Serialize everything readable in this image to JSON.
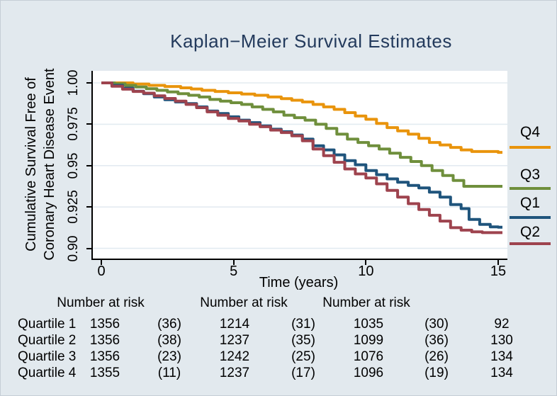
{
  "title": "Kaplan−Meier Survival Estimates",
  "axes": {
    "y_label_line1": "Cumulative Survival Free of",
    "y_label_line2": "Coronary Heart Disease Event",
    "x_label": "Time (years)",
    "y_ticks": [
      "1.00",
      "0.975",
      "0.95",
      "0.925",
      "0.90"
    ],
    "x_ticks": [
      "0",
      "5",
      "10",
      "15"
    ]
  },
  "legend": [
    {
      "label": "Q4",
      "color": "#E9940C"
    },
    {
      "label": "Q3",
      "color": "#6F8F3C"
    },
    {
      "label": "Q1",
      "color": "#1F547C"
    },
    {
      "label": "Q2",
      "color": "#9E434E"
    }
  ],
  "colors": {
    "background": "#E2E9EE",
    "plot_background": "#FFFFFF",
    "gridline": "#E3EBF1",
    "title": "#233A5C",
    "axis": "#000000"
  },
  "chart_data": {
    "type": "line",
    "subtype": "kaplan-meier-step",
    "title": "Kaplan−Meier Survival Estimates",
    "xlabel": "Time (years)",
    "ylabel": "Cumulative Survival Free of Coronary Heart Disease Event",
    "xlim": [
      0,
      15
    ],
    "ylim": [
      0.9,
      1.0
    ],
    "x_tick_values": [
      0,
      5,
      10,
      15
    ],
    "y_tick_values": [
      1.0,
      0.975,
      0.95,
      0.925,
      0.9
    ],
    "grid": "horizontal",
    "legend_position": "right",
    "series": [
      {
        "name": "Q4",
        "color": "#E9940C",
        "points": [
          [
            0,
            1.0
          ],
          [
            0.9,
            1.0
          ],
          [
            1.2,
            0.9993
          ],
          [
            1.8,
            0.9985
          ],
          [
            2.4,
            0.9978
          ],
          [
            3.0,
            0.997
          ],
          [
            3.4,
            0.9963
          ],
          [
            3.8,
            0.9955
          ],
          [
            4.3,
            0.9948
          ],
          [
            4.8,
            0.994
          ],
          [
            5.3,
            0.9933
          ],
          [
            5.8,
            0.9925
          ],
          [
            6.3,
            0.9915
          ],
          [
            6.8,
            0.9905
          ],
          [
            7.2,
            0.9895
          ],
          [
            7.6,
            0.9885
          ],
          [
            8.0,
            0.987
          ],
          [
            8.4,
            0.9855
          ],
          [
            8.8,
            0.984
          ],
          [
            9.2,
            0.982
          ],
          [
            9.6,
            0.98
          ],
          [
            10.0,
            0.978
          ],
          [
            10.4,
            0.9755
          ],
          [
            10.8,
            0.973
          ],
          [
            11.2,
            0.971
          ],
          [
            11.6,
            0.969
          ],
          [
            12.0,
            0.9665
          ],
          [
            12.4,
            0.964
          ],
          [
            12.8,
            0.9625
          ],
          [
            13.2,
            0.961
          ],
          [
            13.6,
            0.9595
          ],
          [
            14.0,
            0.9585
          ],
          [
            15,
            0.958
          ]
        ]
      },
      {
        "name": "Q3",
        "color": "#6F8F3C",
        "points": [
          [
            0,
            1.0
          ],
          [
            0.5,
            0.9995
          ],
          [
            0.9,
            0.9985
          ],
          [
            1.3,
            0.9975
          ],
          [
            1.7,
            0.9965
          ],
          [
            2.1,
            0.9955
          ],
          [
            2.5,
            0.9945
          ],
          [
            2.9,
            0.9935
          ],
          [
            3.3,
            0.9925
          ],
          [
            3.7,
            0.9915
          ],
          [
            4.1,
            0.99
          ],
          [
            4.5,
            0.989
          ],
          [
            4.9,
            0.988
          ],
          [
            5.3,
            0.987
          ],
          [
            5.7,
            0.9855
          ],
          [
            6.1,
            0.984
          ],
          [
            6.5,
            0.9825
          ],
          [
            6.9,
            0.9805
          ],
          [
            7.3,
            0.979
          ],
          [
            7.7,
            0.9775
          ],
          [
            8.1,
            0.975
          ],
          [
            8.5,
            0.9725
          ],
          [
            8.9,
            0.969
          ],
          [
            9.3,
            0.966
          ],
          [
            9.7,
            0.964
          ],
          [
            10.1,
            0.962
          ],
          [
            10.5,
            0.96
          ],
          [
            10.9,
            0.9575
          ],
          [
            11.3,
            0.955
          ],
          [
            11.7,
            0.9525
          ],
          [
            12.1,
            0.95
          ],
          [
            12.5,
            0.947
          ],
          [
            12.9,
            0.944
          ],
          [
            13.3,
            0.941
          ],
          [
            13.7,
            0.9375
          ],
          [
            15,
            0.9375
          ]
        ]
      },
      {
        "name": "Q1",
        "color": "#1F547C",
        "points": [
          [
            0,
            1.0
          ],
          [
            0.4,
            0.9985
          ],
          [
            0.8,
            0.9968
          ],
          [
            1.2,
            0.995
          ],
          [
            1.6,
            0.9935
          ],
          [
            2.0,
            0.9915
          ],
          [
            2.4,
            0.9898
          ],
          [
            2.8,
            0.9885
          ],
          [
            3.2,
            0.9875
          ],
          [
            3.6,
            0.9855
          ],
          [
            4.0,
            0.983
          ],
          [
            4.4,
            0.9815
          ],
          [
            4.8,
            0.9795
          ],
          [
            5.2,
            0.9775
          ],
          [
            5.6,
            0.976
          ],
          [
            6.0,
            0.974
          ],
          [
            6.4,
            0.972
          ],
          [
            6.8,
            0.9705
          ],
          [
            7.2,
            0.9685
          ],
          [
            7.6,
            0.966
          ],
          [
            8.0,
            0.962
          ],
          [
            8.4,
            0.9595
          ],
          [
            8.8,
            0.9565
          ],
          [
            9.2,
            0.953
          ],
          [
            9.6,
            0.9505
          ],
          [
            10.0,
            0.947
          ],
          [
            10.4,
            0.9445
          ],
          [
            10.8,
            0.942
          ],
          [
            11.2,
            0.94
          ],
          [
            11.6,
            0.938
          ],
          [
            12.0,
            0.9365
          ],
          [
            12.4,
            0.934
          ],
          [
            12.8,
            0.931
          ],
          [
            13.2,
            0.9265
          ],
          [
            13.6,
            0.924
          ],
          [
            13.9,
            0.9175
          ],
          [
            14.3,
            0.9145
          ],
          [
            14.7,
            0.913
          ],
          [
            15,
            0.9128
          ]
        ]
      },
      {
        "name": "Q2",
        "color": "#9E434E",
        "points": [
          [
            0,
            1.0
          ],
          [
            0.4,
            0.998
          ],
          [
            0.8,
            0.9962
          ],
          [
            1.2,
            0.9948
          ],
          [
            1.6,
            0.9938
          ],
          [
            2.0,
            0.9922
          ],
          [
            2.4,
            0.9906
          ],
          [
            2.8,
            0.989
          ],
          [
            3.2,
            0.987
          ],
          [
            3.6,
            0.985
          ],
          [
            4.0,
            0.9825
          ],
          [
            4.4,
            0.9805
          ],
          [
            4.8,
            0.9785
          ],
          [
            5.2,
            0.977
          ],
          [
            5.6,
            0.975
          ],
          [
            6.0,
            0.9735
          ],
          [
            6.4,
            0.9715
          ],
          [
            6.8,
            0.97
          ],
          [
            7.2,
            0.968
          ],
          [
            7.6,
            0.965
          ],
          [
            8.0,
            0.96
          ],
          [
            8.4,
            0.956
          ],
          [
            8.8,
            0.952
          ],
          [
            9.2,
            0.948
          ],
          [
            9.6,
            0.945
          ],
          [
            10.0,
            0.9425
          ],
          [
            10.4,
            0.939
          ],
          [
            10.8,
            0.935
          ],
          [
            11.2,
            0.931
          ],
          [
            11.6,
            0.927
          ],
          [
            12.0,
            0.9235
          ],
          [
            12.4,
            0.92
          ],
          [
            12.8,
            0.9165
          ],
          [
            13.2,
            0.9125
          ],
          [
            13.6,
            0.911
          ],
          [
            14.0,
            0.91
          ],
          [
            14.4,
            0.9095
          ],
          [
            15,
            0.9095
          ]
        ]
      }
    ]
  },
  "risk_table": {
    "headers": [
      "Number at risk",
      "Number at risk",
      "Number at risk"
    ],
    "rows": [
      {
        "label": "Quartile 1",
        "values": [
          "1356",
          "(36)",
          "1214",
          "(31)",
          "1035",
          "(30)",
          "92"
        ]
      },
      {
        "label": "Quartile 2",
        "values": [
          "1356",
          "(38)",
          "1237",
          "(35)",
          "1099",
          "(36)",
          "130"
        ]
      },
      {
        "label": "Quartile 3",
        "values": [
          "1356",
          "(23)",
          "1242",
          "(25)",
          "1076",
          "(26)",
          "134"
        ]
      },
      {
        "label": "Quartile 4",
        "values": [
          "1355",
          "(11)",
          "1237",
          "(17)",
          "1096",
          "(19)",
          "134"
        ]
      }
    ]
  }
}
